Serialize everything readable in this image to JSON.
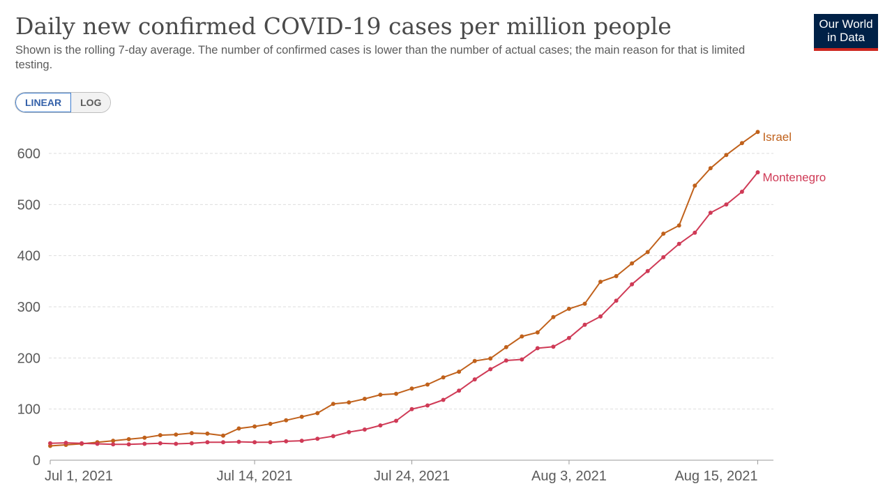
{
  "header": {
    "title": "Daily new confirmed COVID-19 cases per million people",
    "subtitle": "Shown is the rolling 7-day average. The number of confirmed cases is lower than the number of actual cases; the main reason for that is limited testing."
  },
  "logo": {
    "line1": "Our World",
    "line2": "in Data",
    "bg": "#002147",
    "accent": "#ce261e"
  },
  "controls": {
    "linear_label": "LINEAR",
    "log_label": "LOG",
    "selected": "LINEAR"
  },
  "chart_data": {
    "type": "line",
    "title": "Daily new confirmed COVID-19 cases per million people",
    "x_start": "2021-07-01",
    "x_end": "2021-08-15",
    "xlim": [
      "2021-07-01",
      "2021-08-16"
    ],
    "ylim": [
      0,
      650
    ],
    "yticks": [
      0,
      100,
      200,
      300,
      400,
      500,
      600
    ],
    "xticks": [
      {
        "date": "2021-07-01",
        "label": "Jul 1, 2021"
      },
      {
        "date": "2021-07-14",
        "label": "Jul 14, 2021"
      },
      {
        "date": "2021-07-24",
        "label": "Jul 24, 2021"
      },
      {
        "date": "2021-08-03",
        "label": "Aug 3, 2021"
      },
      {
        "date": "2021-08-15",
        "label": "Aug 15, 2021"
      }
    ],
    "grid": true,
    "legend": "line-end labels",
    "series": [
      {
        "name": "Israel",
        "color": "#c0611b",
        "values": [
          28,
          30,
          32,
          35,
          38,
          41,
          44,
          49,
          50,
          53,
          52,
          48,
          62,
          66,
          71,
          78,
          85,
          92,
          110,
          113,
          120,
          128,
          130,
          140,
          148,
          162,
          173,
          194,
          199,
          221,
          242,
          250,
          280,
          296,
          306,
          349,
          360,
          385,
          407,
          443,
          459,
          537,
          571,
          597,
          620,
          642
        ]
      },
      {
        "name": "Montenegro",
        "color": "#cf3a56",
        "values": [
          33,
          34,
          33,
          32,
          31,
          31,
          32,
          33,
          32,
          33,
          35,
          35,
          36,
          35,
          35,
          37,
          38,
          42,
          47,
          55,
          60,
          68,
          77,
          100,
          107,
          118,
          136,
          158,
          178,
          195,
          197,
          219,
          222,
          239,
          265,
          281,
          312,
          344,
          370,
          397,
          423,
          445,
          484,
          500,
          525,
          563
        ]
      }
    ]
  }
}
